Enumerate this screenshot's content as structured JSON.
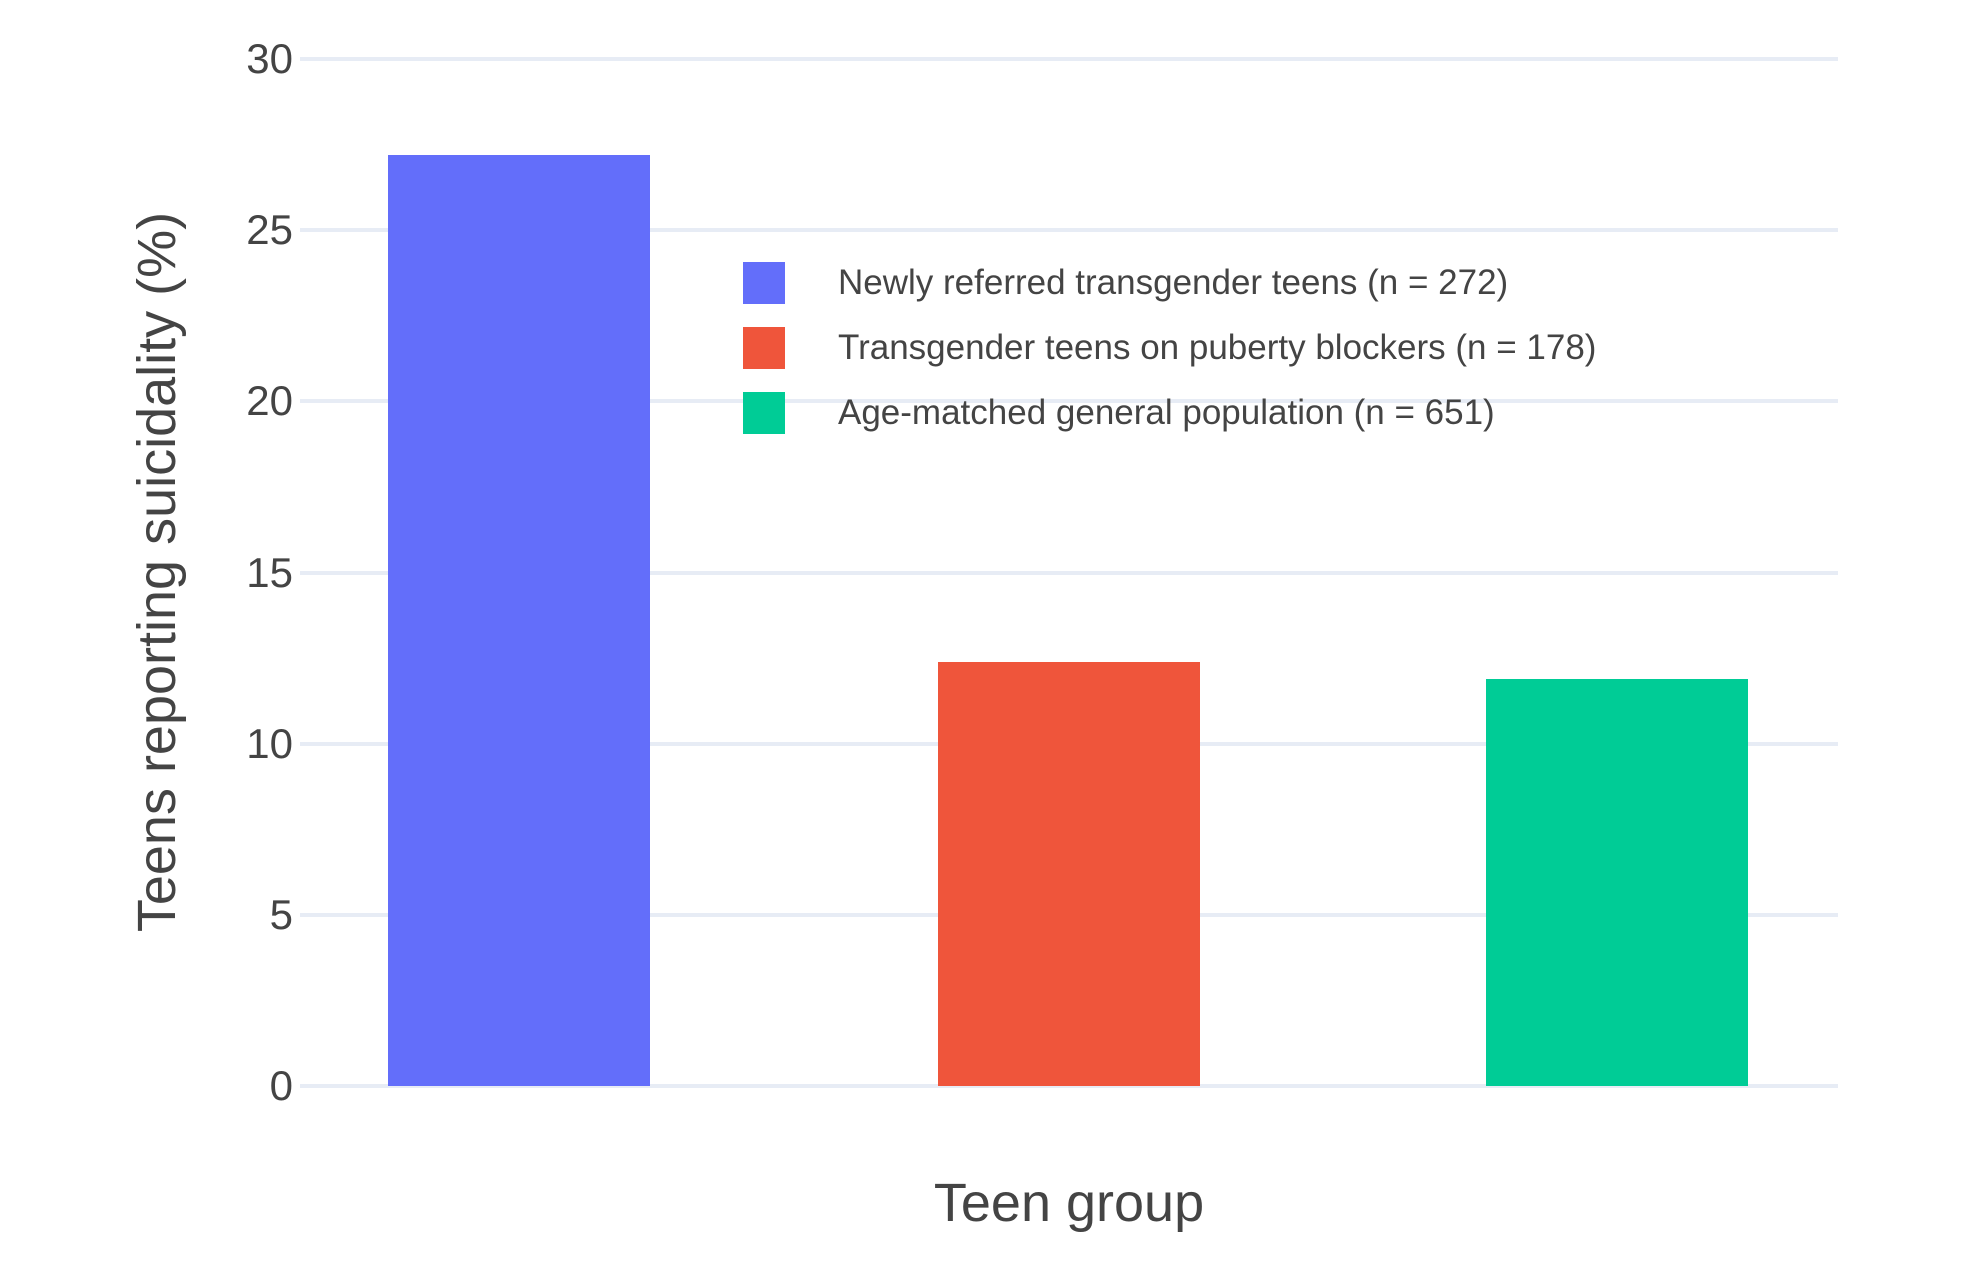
{
  "chart_data": {
    "type": "bar",
    "title": "",
    "xlabel": "Teen group",
    "ylabel": "Teens reporting suicidality (%)",
    "ylim": [
      0,
      30
    ],
    "yticks": [
      0,
      5,
      10,
      15,
      20,
      25,
      30
    ],
    "grid": true,
    "legend_position": "inside top-right of plot",
    "series": [
      {
        "name": "Newly referred transgender teens (n = 272)",
        "value": 27.2,
        "color": "#636EFA"
      },
      {
        "name": "Transgender teens on puberty blockers (n = 178)",
        "value": 12.4,
        "color": "#EF553B"
      },
      {
        "name": "Age-matched general population (n = 651)",
        "value": 11.9,
        "color": "#00CC96"
      }
    ],
    "colors": {
      "background": "#ffffff",
      "gridline": "#E7ECF5",
      "text": "#444444"
    }
  }
}
